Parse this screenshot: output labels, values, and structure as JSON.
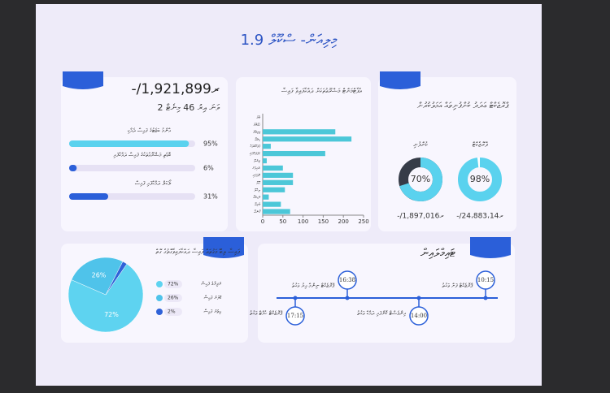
{
  "title": "1.9 މިލިއަން- ސްކޫލް",
  "summary": {
    "amount": "-/1,921,899ރ",
    "subtitle": "2 ވަނަ އިރު 46 މިނެޓް",
    "progress": [
      {
        "label": "އާންމު ބަޖެޓުގެ ފައިސާ ދެއްކި",
        "value": 95,
        "value_label": "95%",
        "color": "#5ad2ee"
      },
      {
        "label": "ބޮޑެތި މަޝްރޫޢުތަކުގެ ފައިސާ ދައްކާފައި",
        "value": 6,
        "value_label": "6%",
        "color": "#2b5fd9"
      },
      {
        "label": "ލޯކަލް ދައްކާފައި ފައިސާ",
        "value": 31,
        "value_label": "31%",
        "color": "#2b5fd9"
      }
    ]
  },
  "donuts": {
    "title": "ޕްރޮޖެކްޓް ޢަދަދު ކުންފުނިތައް އަމަލުކުރުން",
    "items": [
      {
        "label": "ކުންފުނި",
        "value": 70,
        "value_label": "70%",
        "amount": "-/1,897,016ރ",
        "rest_color": "#363c48"
      },
      {
        "label": "ޕްރޮޖެކްޓް",
        "value": 98,
        "value_label": "98%",
        "amount": "-/24،883،14ރ",
        "rest_color": "#ffffff"
      }
    ],
    "color": "#5ad2ee"
  },
  "timeline": {
    "title": "ޓައިމްލައިން",
    "events": [
      {
        "time": "10:15",
        "label": "ޕްރޮޖެކްޓް ފަށާ ވަގުތު"
      },
      {
        "time": "14:00",
        "label": "އިންވެސްޓް ކޮށްފައި ދައްކާ ވަގުތު"
      },
      {
        "time": "16:38",
        "label": "ޕްރޮޖެކްޓް ނިންމާ އިރު ވަގުތު"
      },
      {
        "time": "17:15",
        "label": "ޕްރޮޖެކްޓް ހުއްޓާ ވަގުތު"
      }
    ]
  },
  "chart_data": [
    {
      "type": "bar",
      "title": "އެޕާޓްމަންޓް މަޝްރޫޢުތަކަށް ދައްކާފައިވާ ފައިސާ",
      "categories": [
        "މާލެ",
        "ހުޅުމާލެ",
        "ވިލިމާލެ",
        "ހިތަދޫ",
        "ފުވައްމުލައް",
        "ކުޅުދުއްފުށި",
        "ތިނަދޫ",
        "ނައިފަރު",
        "އޭދަފުށި",
        "ފޭދޫ",
        "ދިއްދޫ",
        "މަހިބަދޫ",
        "ވެލިދޫ",
        "ފޮނަދޫ"
      ],
      "values": [
        0,
        0,
        180,
        220,
        20,
        155,
        10,
        50,
        75,
        75,
        55,
        15,
        45,
        68
      ],
      "color": "#4cc7d8",
      "xlim": [
        0,
        250
      ],
      "xticks": [
        0,
        50,
        100,
        150,
        200,
        250
      ]
    },
    {
      "type": "pie",
      "title": "ފައިސާ ލިބޭ މަގުތައް ފައިސާ ދައްކާފައިވާގޮތުގެ ގޮތް",
      "categories": [
        "ރުފިޔާގެ ފައިސާ",
        "ޑޮލަރު ފައިސާ",
        "އިތުރު ފައިސާ"
      ],
      "values": [
        72,
        26,
        2
      ],
      "value_labels": [
        "72%",
        "26%",
        "2%"
      ],
      "colors": [
        "#5ed3f0",
        "#4fc3ea",
        "#2f62d8"
      ]
    }
  ]
}
